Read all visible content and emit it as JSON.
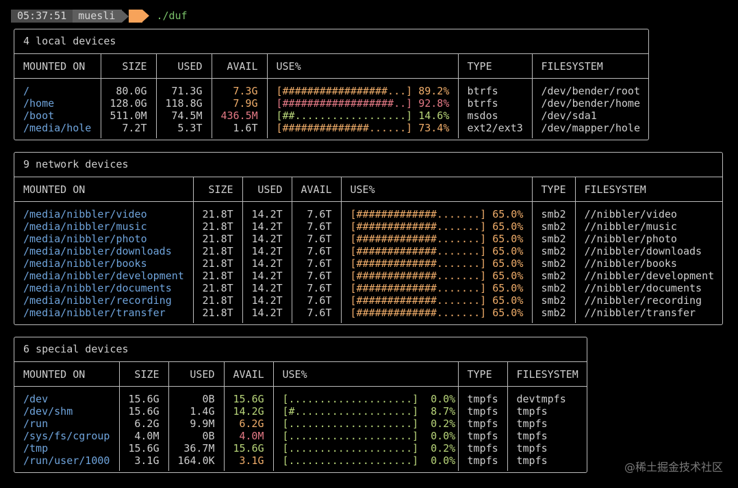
{
  "prompt": {
    "time": "05:37:51",
    "user": "muesli",
    "command": "./duf"
  },
  "headers": {
    "mounted_on": "MOUNTED ON",
    "size": "SIZE",
    "used": "USED",
    "avail": "AVAIL",
    "use_pct": "USE%",
    "type": "TYPE",
    "filesystem": "FILESYSTEM"
  },
  "colors": {
    "mount": "#6fa4dc",
    "warn": "#f0ad6a",
    "crit": "#e57a86",
    "good": "#b9d67a",
    "command": "#7ac26a",
    "accent_arrow": "#f7a35a"
  },
  "local": {
    "title": "4 local devices",
    "rows": [
      {
        "mount": "/",
        "size": "80.0G",
        "used": "71.3G",
        "avail": "7.3G",
        "avail_level": "warn",
        "bar": "[#################...]",
        "pct": "89.2%",
        "pct_level": "warn",
        "type": "btrfs",
        "fs": "/dev/bender/root"
      },
      {
        "mount": "/home",
        "size": "128.0G",
        "used": "118.8G",
        "avail": "7.9G",
        "avail_level": "warn",
        "bar": "[##################..]",
        "pct": "92.8%",
        "pct_level": "crit",
        "type": "btrfs",
        "fs": "/dev/bender/home"
      },
      {
        "mount": "/boot",
        "size": "511.0M",
        "used": "74.5M",
        "avail": "436.5M",
        "avail_level": "crit",
        "bar": "[##..................]",
        "pct": "14.6%",
        "pct_level": "good",
        "type": "msdos",
        "fs": "/dev/sda1"
      },
      {
        "mount": "/media/hole",
        "size": "7.2T",
        "used": "5.3T",
        "avail": "1.6T",
        "avail_level": "plain",
        "bar": "[##############......]",
        "pct": "73.4%",
        "pct_level": "warn",
        "type": "ext2/ext3",
        "fs": "/dev/mapper/hole"
      }
    ]
  },
  "network": {
    "title": "9 network devices",
    "rows": [
      {
        "mount": "/media/nibbler/video",
        "size": "21.8T",
        "used": "14.2T",
        "avail": "7.6T",
        "avail_level": "plain",
        "bar": "[#############.......]",
        "pct": "65.0%",
        "pct_level": "warn",
        "type": "smb2",
        "fs": "//nibbler/video"
      },
      {
        "mount": "/media/nibbler/music",
        "size": "21.8T",
        "used": "14.2T",
        "avail": "7.6T",
        "avail_level": "plain",
        "bar": "[#############.......]",
        "pct": "65.0%",
        "pct_level": "warn",
        "type": "smb2",
        "fs": "//nibbler/music"
      },
      {
        "mount": "/media/nibbler/photo",
        "size": "21.8T",
        "used": "14.2T",
        "avail": "7.6T",
        "avail_level": "plain",
        "bar": "[#############.......]",
        "pct": "65.0%",
        "pct_level": "warn",
        "type": "smb2",
        "fs": "//nibbler/photo"
      },
      {
        "mount": "/media/nibbler/downloads",
        "size": "21.8T",
        "used": "14.2T",
        "avail": "7.6T",
        "avail_level": "plain",
        "bar": "[#############.......]",
        "pct": "65.0%",
        "pct_level": "warn",
        "type": "smb2",
        "fs": "//nibbler/downloads"
      },
      {
        "mount": "/media/nibbler/books",
        "size": "21.8T",
        "used": "14.2T",
        "avail": "7.6T",
        "avail_level": "plain",
        "bar": "[#############.......]",
        "pct": "65.0%",
        "pct_level": "warn",
        "type": "smb2",
        "fs": "//nibbler/books"
      },
      {
        "mount": "/media/nibbler/development",
        "size": "21.8T",
        "used": "14.2T",
        "avail": "7.6T",
        "avail_level": "plain",
        "bar": "[#############.......]",
        "pct": "65.0%",
        "pct_level": "warn",
        "type": "smb2",
        "fs": "//nibbler/development"
      },
      {
        "mount": "/media/nibbler/documents",
        "size": "21.8T",
        "used": "14.2T",
        "avail": "7.6T",
        "avail_level": "plain",
        "bar": "[#############.......]",
        "pct": "65.0%",
        "pct_level": "warn",
        "type": "smb2",
        "fs": "//nibbler/documents"
      },
      {
        "mount": "/media/nibbler/recording",
        "size": "21.8T",
        "used": "14.2T",
        "avail": "7.6T",
        "avail_level": "plain",
        "bar": "[#############.......]",
        "pct": "65.0%",
        "pct_level": "warn",
        "type": "smb2",
        "fs": "//nibbler/recording"
      },
      {
        "mount": "/media/nibbler/transfer",
        "size": "21.8T",
        "used": "14.2T",
        "avail": "7.6T",
        "avail_level": "plain",
        "bar": "[#############.......]",
        "pct": "65.0%",
        "pct_level": "warn",
        "type": "smb2",
        "fs": "//nibbler/transfer"
      }
    ]
  },
  "special": {
    "title": "6 special devices",
    "rows": [
      {
        "mount": "/dev",
        "size": "15.6G",
        "used": "0B",
        "avail": "15.6G",
        "avail_level": "good",
        "bar": "[....................]",
        "pct": "0.0%",
        "pct_level": "good",
        "type": "tmpfs",
        "fs": "devtmpfs"
      },
      {
        "mount": "/dev/shm",
        "size": "15.6G",
        "used": "1.4G",
        "avail": "14.2G",
        "avail_level": "good",
        "bar": "[#...................]",
        "pct": "8.7%",
        "pct_level": "good",
        "type": "tmpfs",
        "fs": "tmpfs"
      },
      {
        "mount": "/run",
        "size": "6.2G",
        "used": "9.9M",
        "avail": "6.2G",
        "avail_level": "warn",
        "bar": "[....................]",
        "pct": "0.2%",
        "pct_level": "good",
        "type": "tmpfs",
        "fs": "tmpfs"
      },
      {
        "mount": "/sys/fs/cgroup",
        "size": "4.0M",
        "used": "0B",
        "avail": "4.0M",
        "avail_level": "crit",
        "bar": "[....................]",
        "pct": "0.0%",
        "pct_level": "good",
        "type": "tmpfs",
        "fs": "tmpfs"
      },
      {
        "mount": "/tmp",
        "size": "15.6G",
        "used": "36.7M",
        "avail": "15.6G",
        "avail_level": "good",
        "bar": "[....................]",
        "pct": "0.2%",
        "pct_level": "good",
        "type": "tmpfs",
        "fs": "tmpfs"
      },
      {
        "mount": "/run/user/1000",
        "size": "3.1G",
        "used": "164.0K",
        "avail": "3.1G",
        "avail_level": "warn",
        "bar": "[....................]",
        "pct": "0.0%",
        "pct_level": "good",
        "type": "tmpfs",
        "fs": "tmpfs"
      }
    ]
  },
  "watermark": "@稀土掘金技术社区"
}
